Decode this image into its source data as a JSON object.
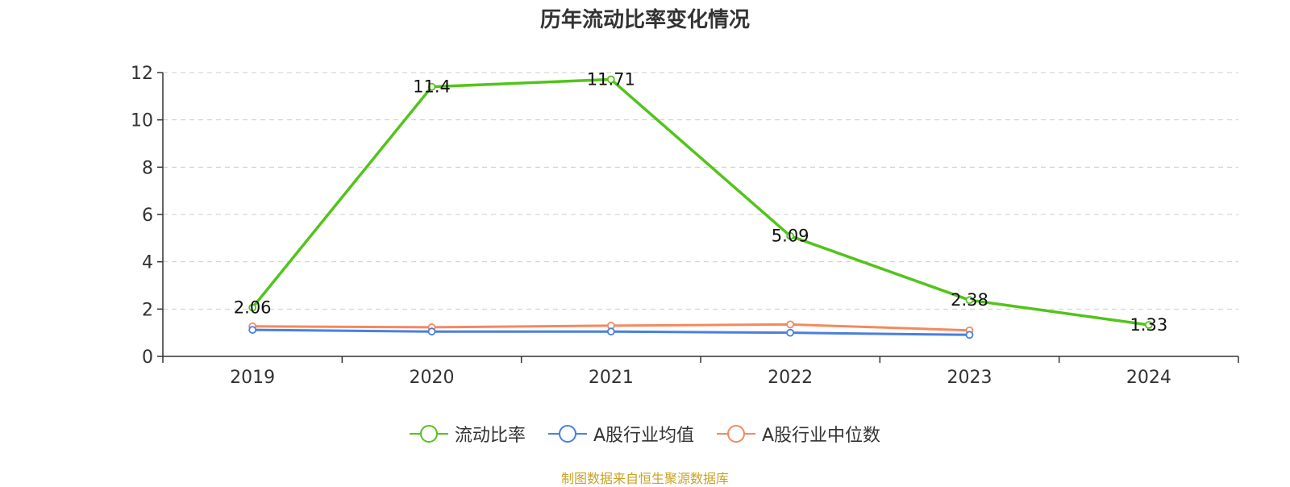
{
  "chart_data": {
    "type": "line",
    "title": "历年流动比率变化情况",
    "categories": [
      "2019",
      "2020",
      "2021",
      "2022",
      "2023",
      "2024"
    ],
    "ylim": [
      0,
      12
    ],
    "yticks": [
      0,
      2,
      4,
      6,
      8,
      10,
      12
    ],
    "grid": "horizontal dashed",
    "legend_position": "bottom-center",
    "series": [
      {
        "name": "流动比率",
        "color": "#52c41a",
        "values": [
          2.06,
          11.4,
          11.71,
          5.09,
          2.38,
          1.33
        ],
        "labels": [
          "2.06",
          "11.4",
          "11.71",
          "5.09",
          "2.38",
          "1.33"
        ]
      },
      {
        "name": "A股行业均值",
        "color": "#4a7fe0",
        "values": [
          1.12,
          1.05,
          1.05,
          1.0,
          0.91,
          null
        ]
      },
      {
        "name": "A股行业中位数",
        "color": "#f5895c",
        "values": [
          1.27,
          1.23,
          1.3,
          1.35,
          1.1,
          null
        ]
      }
    ]
  },
  "source_note": "制图数据来自恒生聚源数据库"
}
